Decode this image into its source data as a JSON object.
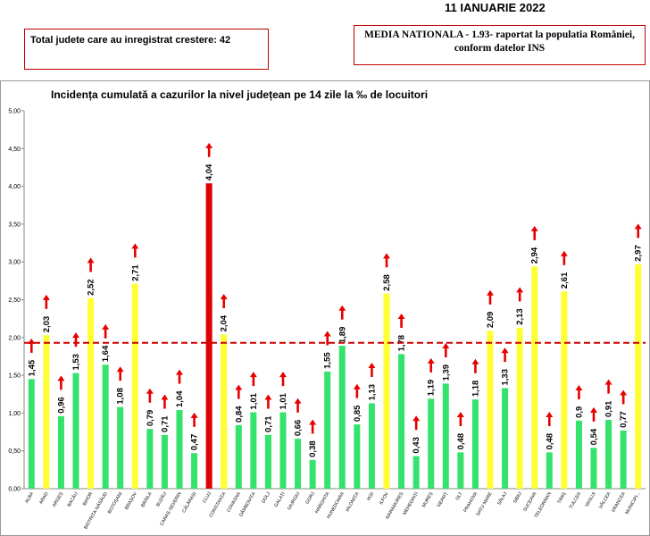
{
  "header": {
    "date": "11 IANUARIE 2022",
    "counties_increase_text": "Total judete care au inregistrat crestere: 42",
    "national_avg_line1": "MEDIA NATIONALA - 1.93-  raportat la populatia României,",
    "national_avg_line2": "conform datelor INS"
  },
  "colors": {
    "green": "#33e36b",
    "yellow": "#ffff33",
    "red": "#dd0000",
    "arrow": "#e60000",
    "avg_line": "#cc0000"
  },
  "chart_data": {
    "type": "bar",
    "title": "Incidența cumulată a cazurilor la nivel județean pe 14 zile la ‰ de locuitori",
    "xlabel": "",
    "ylabel": "",
    "ylim": [
      0,
      5
    ],
    "yticks": [
      "0,00",
      "0,50",
      "1,00",
      "1,50",
      "2,00",
      "2,50",
      "3,00",
      "3,50",
      "4,00",
      "4,50",
      "5,00"
    ],
    "reference_line": 1.93,
    "categories": [
      "ALBA",
      "ARAD",
      "ARGEȘ",
      "BACĂU",
      "BIHOR",
      "BISTRIȚA-NĂSĂUD",
      "BOTOȘANI",
      "BRAȘOV",
      "BRĂILA",
      "BUZĂU",
      "CARAȘ-SEVERIN",
      "CĂLĂRAȘI",
      "CLUJ",
      "CONSTANȚA",
      "COVASNA",
      "DÂMBOVIȚA",
      "DOLJ",
      "GALAȚI",
      "GIURGIU",
      "GORJ",
      "HARGHITA",
      "HUNEDOARA",
      "IALOMIȚA",
      "IAȘI",
      "ILFOV",
      "MARAMUREȘ",
      "MEHEDINȚI",
      "MUREȘ",
      "NEAMȚ",
      "OLT",
      "PRAHOVA",
      "SATU MARE",
      "SĂLAJ",
      "SIBIU",
      "SUCEAVA",
      "TELEORMAN",
      "TIMIȘ",
      "TULCEA",
      "VASLUI",
      "VÂLCEA",
      "VRANCEA",
      "MUNICIPI..."
    ],
    "values": [
      1.45,
      2.03,
      0.96,
      1.53,
      2.52,
      1.64,
      1.08,
      2.71,
      0.79,
      0.71,
      1.04,
      0.47,
      4.04,
      2.04,
      0.84,
      1.01,
      0.71,
      1.01,
      0.66,
      0.38,
      1.55,
      1.89,
      0.85,
      1.13,
      2.58,
      1.78,
      0.43,
      1.19,
      1.39,
      0.48,
      1.18,
      2.09,
      1.33,
      2.13,
      2.94,
      0.48,
      2.61,
      0.9,
      0.54,
      0.91,
      0.77,
      2.97
    ],
    "labels": [
      "1,45",
      "2,03",
      "0,96",
      "1,53",
      "2,52",
      "1,64",
      "1,08",
      "2,71",
      "0,79",
      "0,71",
      "1,04",
      "0,47",
      "4,04",
      "2,04",
      "0,84",
      "1,01",
      "0,71",
      "1,01",
      "0,66",
      "0,38",
      "1,55",
      "1,89",
      "0,85",
      "1,13",
      "2,58",
      "1,78",
      "0,43",
      "1,19",
      "1,39",
      "0,48",
      "1,18",
      "2,09",
      "1,33",
      "2,13",
      "2,94",
      "0,48",
      "2,61",
      "0,9",
      "0,54",
      "0,91",
      "0,77",
      "2,97"
    ],
    "colors": [
      "green",
      "yellow",
      "green",
      "green",
      "yellow",
      "green",
      "green",
      "yellow",
      "green",
      "green",
      "green",
      "green",
      "red",
      "yellow",
      "green",
      "green",
      "green",
      "green",
      "green",
      "green",
      "green",
      "green",
      "green",
      "green",
      "yellow",
      "green",
      "green",
      "green",
      "green",
      "green",
      "green",
      "yellow",
      "green",
      "yellow",
      "yellow",
      "green",
      "yellow",
      "green",
      "green",
      "green",
      "green",
      "yellow"
    ],
    "trend_up_arrows": true
  }
}
